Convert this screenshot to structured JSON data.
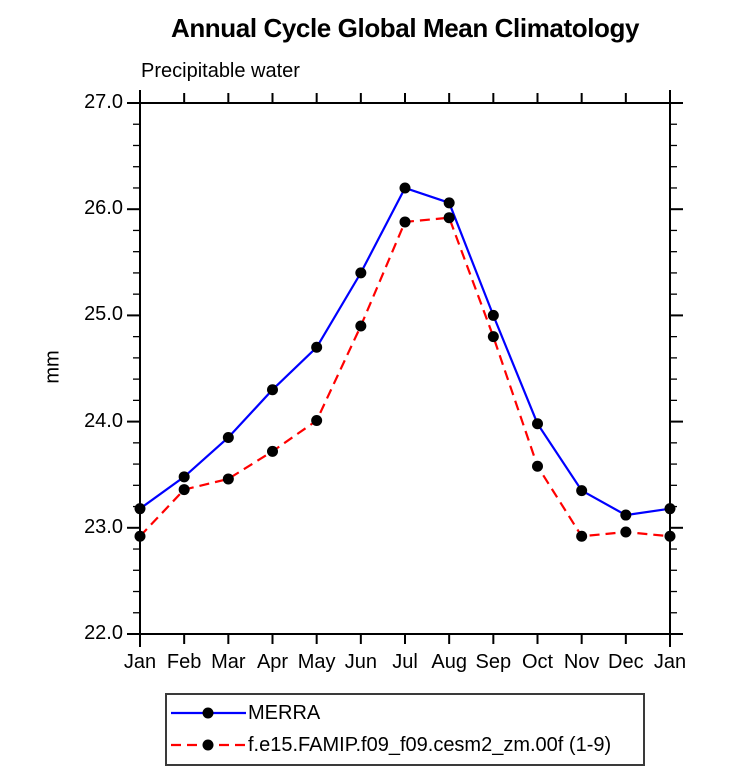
{
  "title": "Annual Cycle Global Mean Climatology",
  "subtitle": "Precipitable water",
  "ylabel": "mm",
  "chart_data": {
    "type": "line",
    "categories": [
      "Jan",
      "Feb",
      "Mar",
      "Apr",
      "May",
      "Jun",
      "Jul",
      "Aug",
      "Sep",
      "Oct",
      "Nov",
      "Dec",
      "Jan"
    ],
    "series": [
      {
        "name": "MERRA",
        "color": "#0000ff",
        "line_style": "solid",
        "marker": "filled-circle",
        "marker_color": "#000000",
        "values": [
          23.18,
          23.48,
          23.85,
          24.3,
          24.7,
          25.4,
          26.2,
          26.06,
          25.0,
          23.98,
          23.35,
          23.12,
          23.18
        ]
      },
      {
        "name": "f.e15.FAMIP.f09_f09.cesm2_zm.00f (1-9)",
        "color": "#ff0000",
        "line_style": "dashed",
        "marker": "filled-circle",
        "marker_color": "#000000",
        "values": [
          22.92,
          23.36,
          23.46,
          23.72,
          24.01,
          24.9,
          25.88,
          25.92,
          24.8,
          23.58,
          22.92,
          22.96,
          22.92
        ]
      }
    ],
    "xlabel": "",
    "ylim": [
      22.0,
      27.0
    ],
    "ytick_values": [
      27,
      26,
      25,
      24,
      23,
      22
    ],
    "ytick_labels": [
      "27.0",
      "26.0",
      "25.0",
      "24.0",
      "23.0",
      "22.0"
    ],
    "ytick_minor_step": 0.2,
    "grid": false,
    "legend_position": "bottom"
  }
}
